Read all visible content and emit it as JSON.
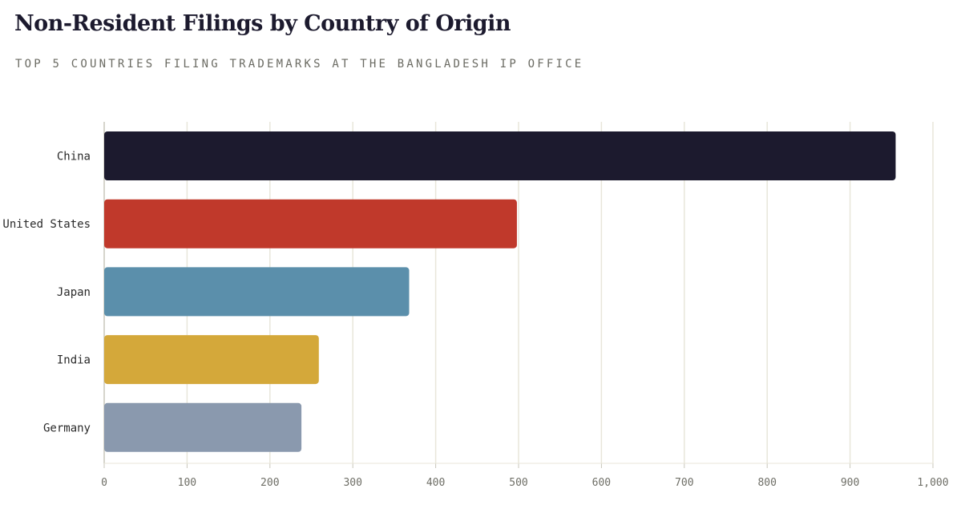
{
  "header": {
    "title": "Non-Resident Filings by Country of Origin",
    "subtitle": "TOP 5 COUNTRIES FILING TRADEMARKS AT THE BANGLADESH IP OFFICE"
  },
  "chart_data": {
    "type": "bar",
    "orientation": "horizontal",
    "categories": [
      "China",
      "United States",
      "Japan",
      "India",
      "Germany"
    ],
    "values": [
      955,
      498,
      368,
      259,
      238
    ],
    "colors": [
      "#1c1a2e",
      "#c0392b",
      "#5b8fab",
      "#d4a83a",
      "#8a99ae"
    ],
    "xlim": [
      0,
      1000
    ],
    "xticks": [
      0,
      100,
      200,
      300,
      400,
      500,
      600,
      700,
      800,
      900,
      1000
    ],
    "xtick_labels": [
      "0",
      "100",
      "200",
      "300",
      "400",
      "500",
      "600",
      "700",
      "800",
      "900",
      "1,000"
    ],
    "grid": true,
    "gridline_color": "#e8e6da"
  }
}
